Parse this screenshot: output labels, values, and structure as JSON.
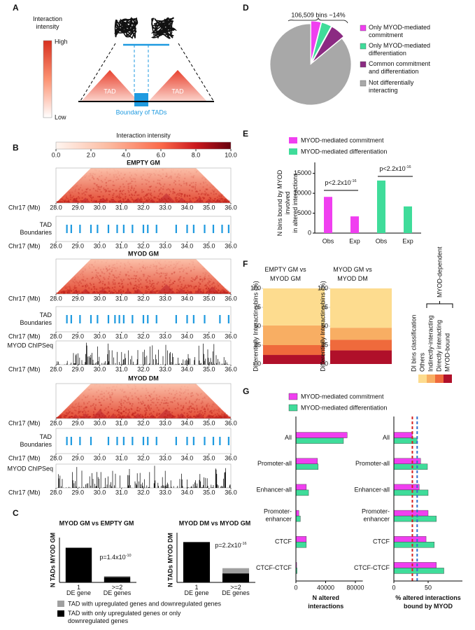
{
  "panel_labels": {
    "a": "A",
    "b": "B",
    "c": "C",
    "d": "D",
    "e": "E",
    "f": "F",
    "g": "G"
  },
  "panel_a": {
    "colorbar_title": "Interaction\nintensity",
    "high": "High",
    "low": "Low",
    "tad_left": "TAD",
    "tad_right": "TAD",
    "boundary_label": "Boundary of TADs"
  },
  "panel_b": {
    "colorbar_title": "Interaction intensity",
    "colorbar_lim": [
      0,
      10
    ],
    "colorbar_ticks": [
      {
        "value": 0,
        "label": "0.0"
      },
      {
        "value": 2,
        "label": "2.0"
      },
      {
        "value": 4,
        "label": "4.0"
      },
      {
        "value": 6,
        "label": "6.0"
      },
      {
        "value": 8,
        "label": "8.0"
      },
      {
        "value": 10,
        "label": "10.0"
      }
    ],
    "axis_label": "Chr17 (Mb)",
    "xlim": [
      28,
      36
    ],
    "xticks": [
      {
        "value": 28,
        "label": "28.0"
      },
      {
        "value": 29,
        "label": "29.0"
      },
      {
        "value": 30,
        "label": "30.0"
      },
      {
        "value": 31,
        "label": "31.0"
      },
      {
        "value": 32,
        "label": "32.0"
      },
      {
        "value": 33,
        "label": "33.0"
      },
      {
        "value": 34,
        "label": "34.0"
      },
      {
        "value": 35,
        "label": "35.0"
      },
      {
        "value": 36,
        "label": "36.0"
      }
    ],
    "boundary_label": "TAD\nBoundaries",
    "chipseq_label": "MYOD ChIPSeq",
    "boundary_color": "#1e9ae0",
    "tracks": [
      {
        "type": "heatmap",
        "title": "EMPTY GM"
      },
      {
        "type": "boundaries",
        "values": [
          28.5,
          28.7,
          29.1,
          29.6,
          29.9,
          30.4,
          30.8,
          31.1,
          31.5,
          32.0,
          32.2,
          32.6,
          33.5,
          34.0,
          34.3,
          34.8,
          35.2,
          35.6,
          35.9
        ]
      },
      {
        "type": "heatmap",
        "title": "MYOD GM"
      },
      {
        "type": "boundaries",
        "values": [
          28.5,
          28.7,
          29.1,
          29.6,
          29.9,
          30.4,
          30.7,
          30.9,
          31.1,
          31.5,
          32.0,
          32.2,
          32.6,
          33.5,
          34.0,
          34.3,
          34.8,
          35.5,
          35.9
        ]
      },
      {
        "type": "chipseq"
      },
      {
        "type": "heatmap",
        "title": "MYOD DM"
      },
      {
        "type": "boundaries",
        "values": [
          28.5,
          28.7,
          29.1,
          29.6,
          30.4,
          30.8,
          31.1,
          31.5,
          32.0,
          32.2,
          32.6,
          33.5,
          34.0,
          34.3,
          34.8,
          35.2,
          35.5,
          35.9
        ]
      },
      {
        "type": "chipseq"
      }
    ]
  },
  "chart_data": [
    {
      "type": "bar",
      "stacked": true,
      "title": "MYOD GM vs EMPTY GM",
      "ylabel": "N TADs MYOD GM",
      "categories": [
        "1\nDE gene",
        ">=2\nDE genes"
      ],
      "ylim": [
        0,
        1200
      ],
      "series": [
        {
          "name": "TAD with only upregulated genes or only\ndownregulated genes",
          "color": "#000000",
          "values": [
            1100,
            170
          ]
        },
        {
          "name": "TAD with upregulated genes and downregulated genes",
          "color": "#a0a0a0",
          "values": [
            0,
            30
          ]
        }
      ],
      "annotation": {
        "text": "p=1.4x10",
        "exponent": "-10"
      }
    },
    {
      "type": "bar",
      "stacked": true,
      "title": "MYOD DM vs MYOD GM",
      "ylabel": "N TADs MYOD DM",
      "categories": [
        "1\nDE gene",
        ">=2\nDE genes"
      ],
      "ylim": [
        0,
        1800
      ],
      "series": [
        {
          "color": "#000000",
          "values": [
            1700,
            380
          ]
        },
        {
          "color": "#a0a0a0",
          "values": [
            0,
            220
          ]
        }
      ],
      "annotation": {
        "text": "p=2.2x10",
        "exponent": "-16"
      }
    },
    {
      "type": "pie",
      "title": "106,509 bins ~14%",
      "categories": [
        "Only MYOD-mediated\ncommitment",
        "Only MYOD-mediated\ndifferentiation",
        "Common commitment\nand differentiation",
        "Not differentially\ninteracting"
      ],
      "values": [
        4,
        4,
        6,
        86
      ],
      "colors": [
        "#f03ff0",
        "#3fdc9a",
        "#8b2a82",
        "#a8a8a8"
      ]
    },
    {
      "type": "bar",
      "ylabel": "N bins bound by MYOD\ninvolved\nin altered interactions",
      "categories": [
        "Obs",
        "Exp",
        "Obs",
        "Exp"
      ],
      "values": [
        9100,
        4200,
        13200,
        6700
      ],
      "colors": [
        "#f03ff0",
        "#f03ff0",
        "#3fdc9a",
        "#3fdc9a"
      ],
      "legend": [
        {
          "name": "MYOD-mediated commitment",
          "color": "#f03ff0"
        },
        {
          "name": "MYOD-mediated differentiation",
          "color": "#3fdc9a"
        }
      ],
      "ylim": [
        0,
        16000
      ],
      "yticks": [
        0,
        5000,
        10000,
        15000
      ],
      "annotations": [
        {
          "text": "p<2.2x10",
          "exponent": "-16"
        },
        {
          "text": "p<2.2x10",
          "exponent": "-16"
        }
      ]
    },
    {
      "type": "stacked_bar",
      "ylabel": "Differentially Interacting bins (%)",
      "categories": [
        "EMPTY GM vs\nMYOD GM",
        "MYOD GM vs\nMYOD DM"
      ],
      "ylim": [
        0,
        100
      ],
      "yticks": [
        0,
        25,
        50,
        75,
        100
      ],
      "series": [
        {
          "name": "MYOD-bound",
          "color": "#b0102a",
          "values": [
            12,
            18
          ]
        },
        {
          "name": "Directly interacting",
          "color": "#ef6a3c",
          "values": [
            13,
            14
          ]
        },
        {
          "name": "Indirectly-interacting",
          "color": "#f8ae63",
          "values": [
            26,
            16
          ]
        },
        {
          "name": "Others",
          "color": "#fddc8f",
          "values": [
            49,
            52
          ]
        }
      ],
      "legend_title": "DI bins classification",
      "group_label": "MYOD-dependent"
    },
    {
      "type": "hbar",
      "categories": [
        "All",
        "Promoter-all",
        "Enhancer-all",
        "Promoter-\nenhancer",
        "CTCF",
        "CTCF-CTCF"
      ],
      "xlim": [
        0,
        90000
      ],
      "xticks": [
        0,
        40000,
        80000
      ],
      "xlabel": "N altered\ninteractions",
      "series": [
        {
          "name": "MYOD-mediated commitment",
          "color": "#f03ff0",
          "values": [
            69000,
            29000,
            14000,
            4000,
            14000,
            1000
          ]
        },
        {
          "name": "MYOD-mediated differentiation",
          "color": "#3fdc9a",
          "values": [
            64000,
            30000,
            17000,
            6000,
            14000,
            1500
          ]
        }
      ]
    },
    {
      "type": "hbar",
      "categories": [
        "All",
        "Promoter-all",
        "Enhancer-all",
        "Promoter-\nenhancer",
        "CTCF",
        "CTCF-CTCF"
      ],
      "xlim": [
        0,
        100
      ],
      "xticks": [
        0,
        50
      ],
      "xlabel": "% altered interactions\nbound by MYOD",
      "series": [
        {
          "color": "#f03ff0",
          "values": [
            27,
            39,
            37,
            50,
            47,
            62
          ]
        },
        {
          "color": "#3fdc9a",
          "values": [
            34,
            49,
            50,
            62,
            59,
            73
          ]
        }
      ],
      "reference_lines": [
        {
          "value": 27,
          "color": "#d62020"
        },
        {
          "value": 34,
          "color": "#3070d0"
        }
      ]
    }
  ]
}
